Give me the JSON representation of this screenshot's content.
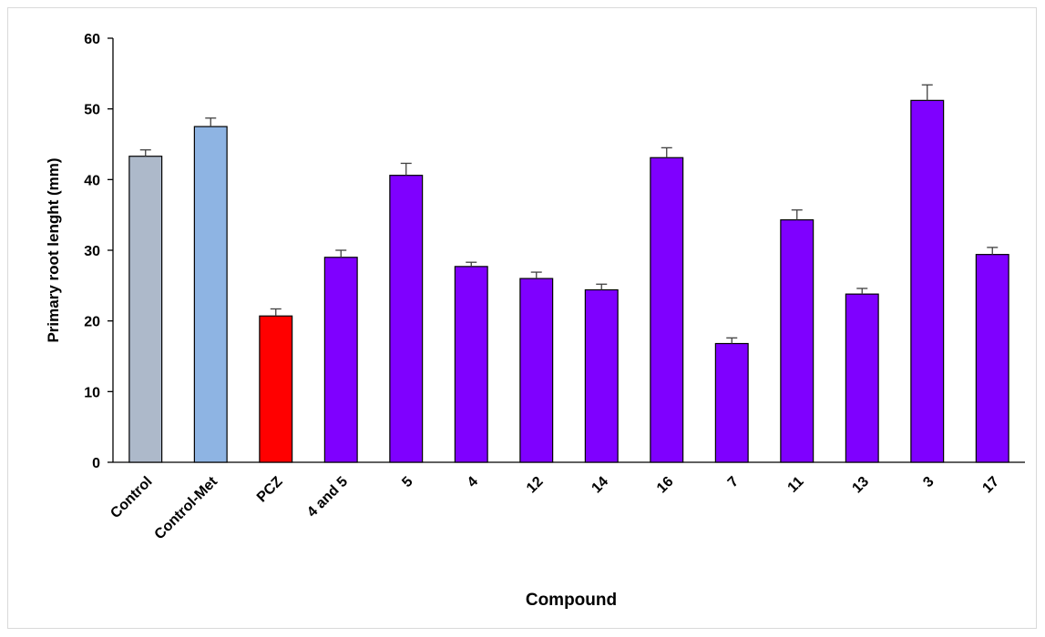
{
  "chart_data": {
    "type": "bar",
    "title": "",
    "xlabel": "Compound",
    "ylabel": "Primary root lenght  (mm)",
    "ylim": [
      0,
      60
    ],
    "yticks": [
      0,
      10,
      20,
      30,
      40,
      50,
      60
    ],
    "categories": [
      "Control",
      "Control-Met",
      "PCZ",
      "4 and 5",
      "5",
      "4",
      "12",
      "14",
      "16",
      "7",
      "11",
      "13",
      "3",
      "17"
    ],
    "values": [
      43.3,
      47.5,
      20.7,
      29.0,
      40.6,
      27.7,
      26.0,
      24.4,
      43.1,
      16.8,
      34.3,
      23.8,
      51.2,
      29.4
    ],
    "errors": [
      0.9,
      1.2,
      1.0,
      1.0,
      1.7,
      0.6,
      0.9,
      0.8,
      1.4,
      0.8,
      1.4,
      0.8,
      2.2,
      1.0
    ],
    "colors": [
      "#adb9ca",
      "#8eb4e3",
      "#ff0000",
      "#7f00ff",
      "#7f00ff",
      "#7f00ff",
      "#7f00ff",
      "#7f00ff",
      "#7f00ff",
      "#7f00ff",
      "#7f00ff",
      "#7f00ff",
      "#7f00ff",
      "#7f00ff"
    ],
    "grid": false,
    "legend": "none"
  }
}
